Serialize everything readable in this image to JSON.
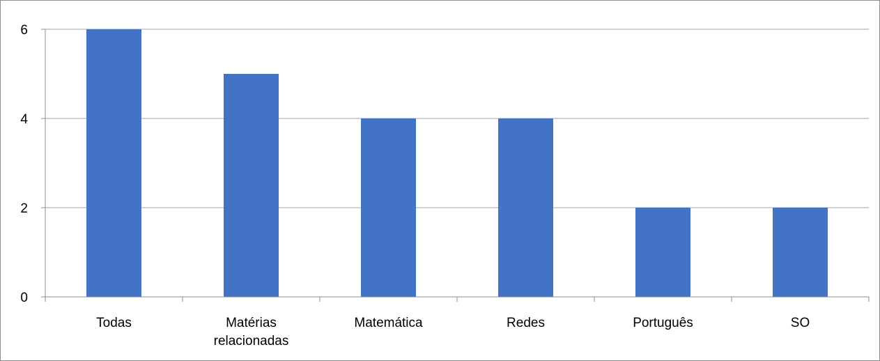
{
  "chart_data": {
    "type": "bar",
    "categories": [
      [
        "Todas"
      ],
      [
        "Matérias",
        "relacionadas"
      ],
      [
        "Matemática"
      ],
      [
        "Redes"
      ],
      [
        "Português"
      ],
      [
        "SO"
      ]
    ],
    "values": [
      6,
      5,
      4,
      4,
      2,
      2
    ],
    "ylim": [
      0,
      6
    ],
    "yticks": [
      "0",
      "2",
      "4",
      "6"
    ],
    "grid": true,
    "legend": "none",
    "colors": {
      "bar": "#4472c4",
      "grid": "#a6a6a6",
      "axis": "#8c8c8c"
    }
  }
}
